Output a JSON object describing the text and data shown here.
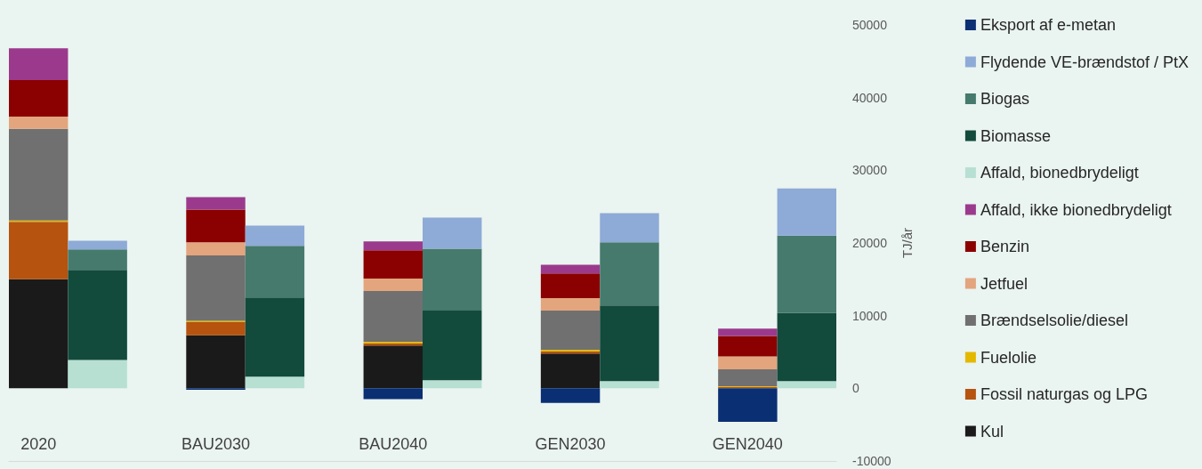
{
  "chart_data": {
    "type": "bar",
    "stacked": true,
    "ylabel": "TJ/år",
    "legend": "right",
    "grid": false,
    "categories": [
      "2020",
      null,
      null,
      "BAU2030",
      null,
      null,
      "BAU2040",
      null,
      null,
      "GEN2030",
      null,
      null,
      "GEN2040",
      null
    ],
    "ylim": [
      -10000,
      50000
    ],
    "yticks": [
      -10000,
      0,
      10000,
      20000,
      30000,
      40000,
      50000
    ],
    "series": [
      {
        "name": "Kul",
        "color": "#1a1a1a",
        "values": [
          15000,
          null,
          null,
          7300,
          null,
          null,
          5900,
          null,
          null,
          4800,
          null,
          null,
          null,
          null
        ]
      },
      {
        "name": "Fossil naturgas og LPG",
        "color": "#b5530f",
        "values": [
          7900,
          null,
          null,
          1800,
          null,
          null,
          300,
          null,
          null,
          300,
          null,
          null,
          200,
          null
        ]
      },
      {
        "name": "Fuelolie",
        "color": "#e5b800",
        "values": [
          200,
          null,
          null,
          200,
          null,
          null,
          200,
          null,
          null,
          200,
          null,
          null,
          100,
          null
        ]
      },
      {
        "name": "Brændselsolie/diesel",
        "color": "#707070",
        "values": [
          12600,
          null,
          null,
          9000,
          null,
          null,
          7000,
          null,
          null,
          5400,
          null,
          null,
          2300,
          null
        ]
      },
      {
        "name": "Jetfuel",
        "color": "#e3a57d",
        "values": [
          1700,
          null,
          null,
          1800,
          null,
          null,
          1700,
          null,
          null,
          1700,
          null,
          null,
          1800,
          null
        ]
      },
      {
        "name": "Benzin",
        "color": "#8b0000",
        "values": [
          5000,
          null,
          null,
          4500,
          null,
          null,
          3900,
          null,
          null,
          3400,
          null,
          null,
          2800,
          null
        ]
      },
      {
        "name": "Affald, ikke bionedbrydeligt",
        "color": "#9b3a8c",
        "values": [
          4400,
          null,
          null,
          1700,
          null,
          null,
          1200,
          null,
          null,
          1200,
          null,
          null,
          1000,
          null
        ]
      },
      {
        "name": "Affald, bionedbrydeligt",
        "color": "#b7e0d3",
        "values": [
          null,
          3900,
          null,
          null,
          1600,
          null,
          null,
          1100,
          null,
          null,
          1000,
          null,
          null,
          1000
        ]
      },
      {
        "name": "Biomasse",
        "color": "#124a3c",
        "values": [
          null,
          12400,
          null,
          null,
          10900,
          null,
          null,
          9700,
          null,
          null,
          10400,
          null,
          null,
          9400
        ]
      },
      {
        "name": "Biogas",
        "color": "#457a6d",
        "values": [
          null,
          2800,
          null,
          null,
          7100,
          null,
          null,
          8400,
          null,
          null,
          8700,
          null,
          null,
          10600
        ]
      },
      {
        "name": "Flydende VE-brændstof / PtX",
        "color": "#8eaad6",
        "values": [
          null,
          1200,
          null,
          null,
          2800,
          null,
          null,
          4300,
          null,
          null,
          4000,
          null,
          null,
          6500
        ]
      },
      {
        "name": "Eksport af e-metan",
        "color": "#0b2f73",
        "values": [
          null,
          null,
          null,
          -200,
          null,
          null,
          -1500,
          null,
          null,
          -2000,
          null,
          null,
          -4600,
          null
        ]
      }
    ]
  }
}
